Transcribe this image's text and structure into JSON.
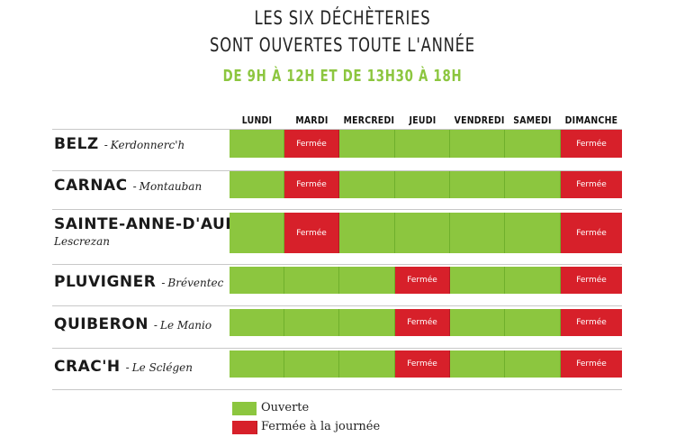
{
  "title": {
    "line1": "LES SIX DÉCHÈTERIES",
    "line2": "SONT OUVERTES TOUTE L'ANNÉE",
    "hours": "DE 9H À 12H ET DE 13H30 À 18H"
  },
  "days": [
    "LUNDI",
    "MARDI",
    "MERCREDI",
    "JEUDI",
    "VENDREDI",
    "SAMEDI",
    "DIMANCHE"
  ],
  "closed_label": "Fermée",
  "sites": [
    {
      "name": "BELZ",
      "location": "Kerdonnerc'h",
      "closed": [
        1,
        6
      ]
    },
    {
      "name": "CARNAC",
      "location": "Montauban",
      "closed": [
        1,
        6
      ]
    },
    {
      "name": "SAINTE-ANNE-D'AURAY",
      "location": "Lescrezan",
      "closed": [
        1,
        6
      ]
    },
    {
      "name": "PLUVIGNER",
      "location": "Bréventec",
      "closed": [
        3,
        6
      ]
    },
    {
      "name": "QUIBERON",
      "location": "Le Manio",
      "closed": [
        3,
        6
      ]
    },
    {
      "name": "CRAC'H",
      "location": "Le Sclégen",
      "closed": [
        3,
        6
      ]
    }
  ],
  "legend": {
    "open": "Ouverte",
    "closed": "Fermée à la journée"
  },
  "colors": {
    "open": "#8cc63f",
    "closed": "#d7202a"
  }
}
